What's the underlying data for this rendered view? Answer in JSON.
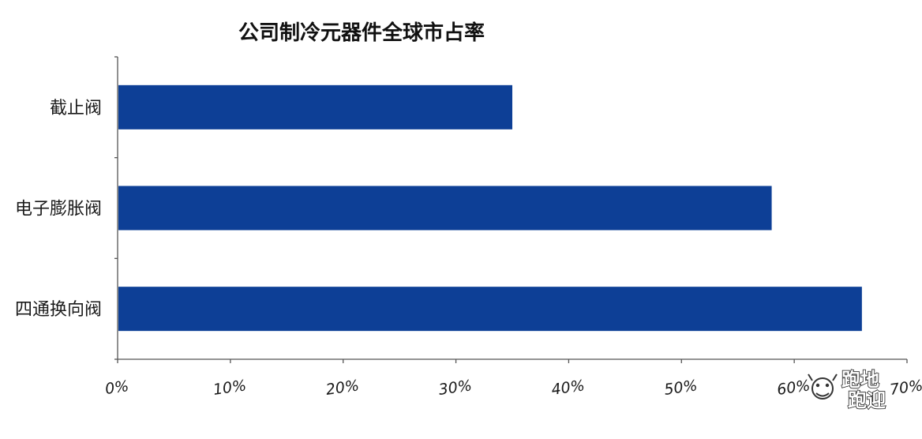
{
  "chart_data": {
    "type": "bar",
    "orientation": "horizontal",
    "title": "公司制冷元器件全球市占率",
    "categories": [
      "截止阀",
      "电子膨胀阀",
      "四通换向阀"
    ],
    "values": [
      35,
      58,
      66
    ],
    "value_unit": "%",
    "xlim": [
      0,
      70
    ],
    "xticks": [
      "0%",
      "10%",
      "20%",
      "30%",
      "40%",
      "50%",
      "60%",
      "70%"
    ],
    "xlabel": "",
    "ylabel": "",
    "grid": false,
    "legend": "none",
    "bar_color": "#0d3f96"
  },
  "watermark": {
    "text_top": "跑地",
    "text_bottom": "跑迎"
  }
}
